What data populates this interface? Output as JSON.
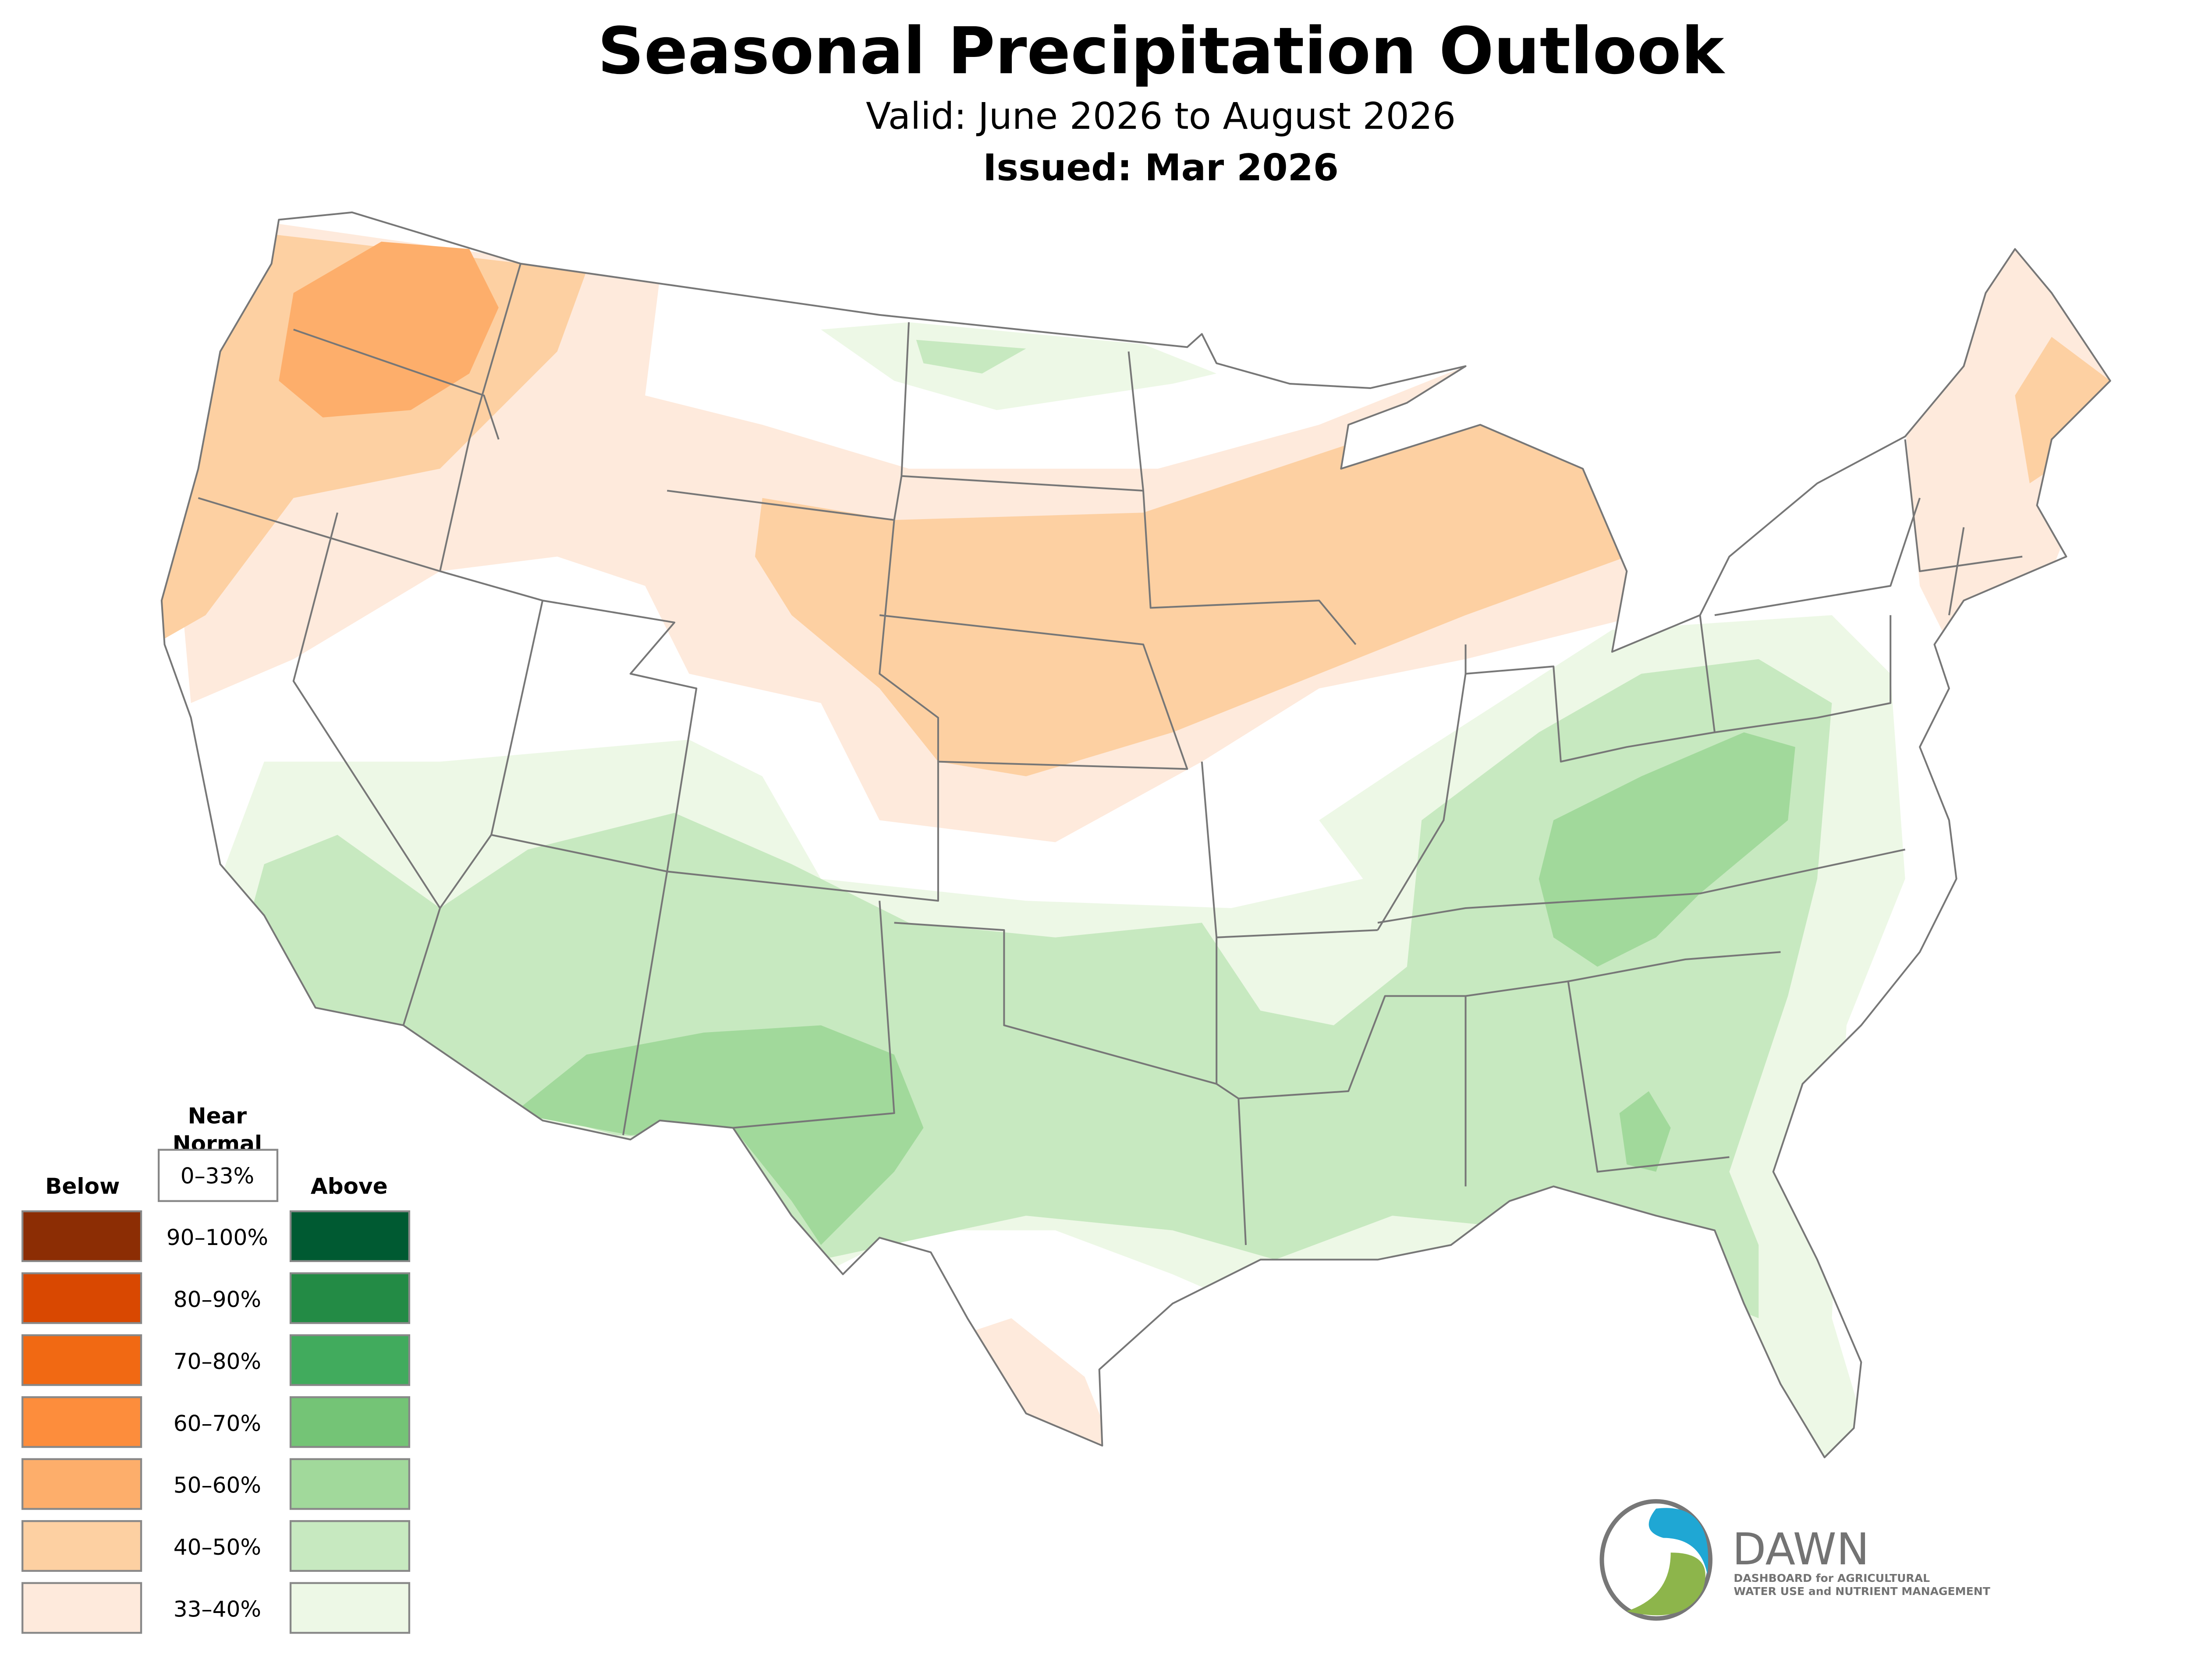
{
  "title": "Seasonal Precipitation Outlook",
  "subtitle": "Valid: June 2026 to August 2026",
  "issued": "Issued: Mar 2026",
  "legend": {
    "near_normal_label": [
      "Near",
      "Normal"
    ],
    "near_normal_range": "0–33%",
    "below_label": "Below",
    "above_label": "Above",
    "ranges": [
      "90–100%",
      "80–90%",
      "70–80%",
      "60–70%",
      "50–60%",
      "40–50%",
      "33–40%"
    ],
    "below_colors": [
      "#8c2d04",
      "#d94801",
      "#f16913",
      "#fd8d3c",
      "#fdae6b",
      "#fdd0a2",
      "#feeadc"
    ],
    "above_colors": [
      "#005a32",
      "#238b45",
      "#41ab5d",
      "#74c476",
      "#a1d99b",
      "#c7e9c0",
      "#edf8e6"
    ]
  },
  "logo": {
    "name": "DAWN",
    "line1": "DASHBOARD for AGRICULTURAL",
    "line2": "WATER USE and NUTRIENT MANAGEMENT",
    "colors": {
      "blue": "#1fa7d4",
      "green": "#8db54b",
      "gray": "#737373"
    }
  }
}
